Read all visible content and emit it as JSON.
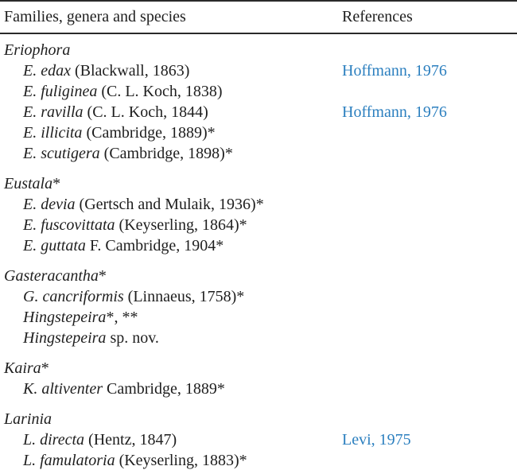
{
  "header": {
    "families_col": "Families, genera and species",
    "references_col": "References"
  },
  "colors": {
    "link": "#2b7fbf",
    "text": "#1e1e1e",
    "rule": "#2a2a2a"
  },
  "sections": [
    {
      "genus": {
        "italic": "Eriophora",
        "suffix": ""
      },
      "species": [
        {
          "italic": "E. edax",
          "roman": " (Blackwall, 1863)",
          "ref": "Hoffmann, 1976"
        },
        {
          "italic": "E. fuliginea",
          "roman": " (C. L. Koch, 1838)",
          "ref": ""
        },
        {
          "italic": "E. ravilla",
          "roman": " (C. L. Koch, 1844)",
          "ref": "Hoffmann, 1976"
        },
        {
          "italic": "E. illicita",
          "roman": " (Cambridge, 1889)*",
          "ref": ""
        },
        {
          "italic": "E. scutigera",
          "roman": " (Cambridge, 1898)*",
          "ref": ""
        }
      ]
    },
    {
      "genus": {
        "italic": "Eustala",
        "suffix": "*"
      },
      "species": [
        {
          "italic": "E. devia",
          "roman": " (Gertsch and Mulaik, 1936)*",
          "ref": ""
        },
        {
          "italic": "E. fuscovittata",
          "roman": " (Keyserling, 1864)*",
          "ref": ""
        },
        {
          "italic": "E. guttata",
          "roman": " F. Cambridge, 1904*",
          "ref": ""
        }
      ]
    },
    {
      "genus": {
        "italic": "Gasteracantha",
        "suffix": "*"
      },
      "species": [
        {
          "italic": "G. cancriformis",
          "roman": " (Linnaeus, 1758)*",
          "ref": ""
        },
        {
          "italic": "Hingstepeira",
          "roman": "*, **",
          "ref": ""
        },
        {
          "italic": "Hingstepeira",
          "roman": " sp. nov.",
          "ref": ""
        }
      ]
    },
    {
      "genus": {
        "italic": "Kaira",
        "suffix": "*"
      },
      "species": [
        {
          "italic": "K. altiventer",
          "roman": " Cambridge, 1889*",
          "ref": ""
        }
      ]
    },
    {
      "genus": {
        "italic": "Larinia",
        "suffix": ""
      },
      "species": [
        {
          "italic": "L. directa",
          "roman": " (Hentz, 1847)",
          "ref": "Levi, 1975"
        },
        {
          "italic": "L. famulatoria",
          "roman": " (Keyserling, 1883)*",
          "ref": ""
        }
      ]
    }
  ]
}
